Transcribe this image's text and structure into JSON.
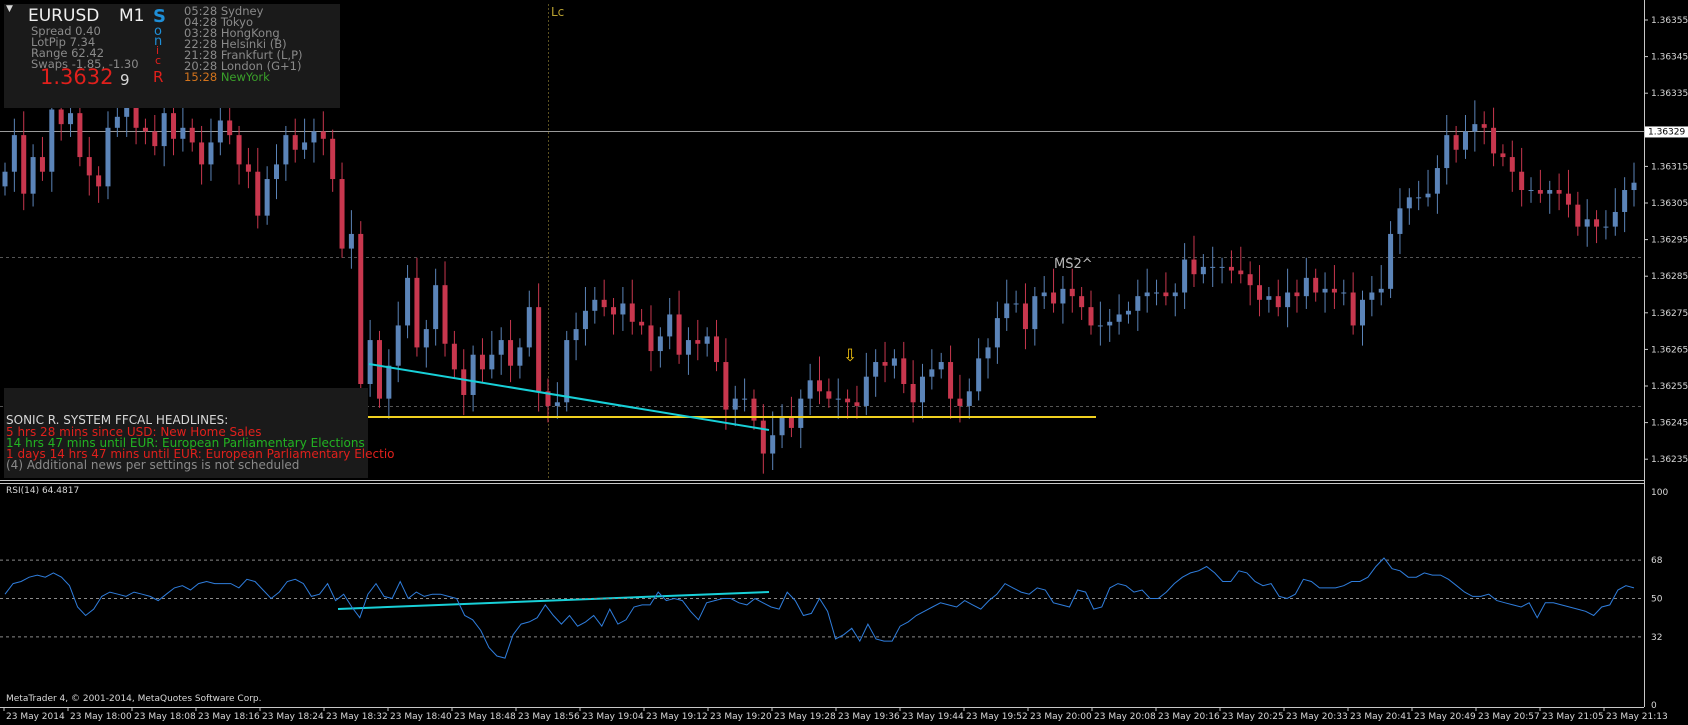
{
  "info_panel": {
    "symbol": "EURUSD",
    "timeframe": "M1",
    "spread": "Spread 0.40",
    "lotpip": "LotPip 7.34",
    "range": "Range 62.42",
    "swaps": "Swaps -1.85, -1.30",
    "price": "1.3632",
    "price_digit": "9",
    "sonic_letters": [
      "S",
      "o",
      "n",
      "i",
      "c",
      "R"
    ],
    "sessions": [
      {
        "time": "05:28",
        "name": "Sydney",
        "color": "#8a8a8a"
      },
      {
        "time": "04:28",
        "name": "Tokyo",
        "color": "#8a8a8a"
      },
      {
        "time": "03:28",
        "name": "HongKong",
        "color": "#8a8a8a"
      },
      {
        "time": "22:28",
        "name": "Helsinki  (B)",
        "color": "#8a8a8a"
      },
      {
        "time": "21:28",
        "name": "Frankfurt  (L,P)",
        "color": "#8a8a8a"
      },
      {
        "time": "20:28",
        "name": "London  (G+1)",
        "color": "#8a8a8a"
      },
      {
        "time": "15:28",
        "name": "NewYork",
        "color": "#3aa02a",
        "time_color": "#d2731c"
      }
    ]
  },
  "news_panel": {
    "title": "SONIC R. SYSTEM  FFCAL HEADLINES:",
    "lines": [
      {
        "text": "5 hrs 28 mins since USD: New Home Sales",
        "color": "#e0201c"
      },
      {
        "text": "14 hrs 47 mins until EUR: European Parliamentary Elections",
        "color": "#22b322"
      },
      {
        "text": "1 days 14 hrs 47 mins until EUR: European Parliamentary Electio",
        "color": "#e0201c"
      },
      {
        "text": "(4)  Additional news per settings is not scheduled",
        "color": "#8a8a8a"
      }
    ]
  },
  "labels": {
    "lc": "Lc",
    "ms2": "MS2^",
    "arrow": "⇩",
    "rsi_title": "RSI(14) 64.4817",
    "copyright": "MetaTrader 4, © 2001-2014, MetaQuotes Software Corp.",
    "current_price": "1.36329"
  },
  "price_axis": [
    "1.36355",
    "1.36345",
    "1.36335",
    "1.36325",
    "1.36315",
    "1.36305",
    "1.36295",
    "1.36285",
    "1.36275",
    "1.36265",
    "1.36255",
    "1.36245",
    "1.36235"
  ],
  "rsi_axis": [
    "100",
    "68",
    "50",
    "32",
    "0"
  ],
  "time_axis": [
    "23 May 2014",
    "23 May 18:00",
    "23 May 18:08",
    "23 May 18:16",
    "23 May 18:24",
    "23 May 18:32",
    "23 May 18:40",
    "23 May 18:48",
    "23 May 18:56",
    "23 May 19:04",
    "23 May 19:12",
    "23 May 19:20",
    "23 May 19:28",
    "23 May 19:36",
    "23 May 19:44",
    "23 May 19:52",
    "23 May 20:00",
    "23 May 20:08",
    "23 May 20:16",
    "23 May 20:25",
    "23 May 20:33",
    "23 May 20:41",
    "23 May 20:49",
    "23 May 20:57",
    "23 May 21:05",
    "23 May 21:13"
  ],
  "chart_data": {
    "type": "candlestick",
    "price_range": [
      1.3623,
      1.3636
    ],
    "rsi_range": [
      0,
      100
    ],
    "rsi_levels": [
      32,
      50,
      68
    ],
    "current_price": 1.36329,
    "support_level": 1.36251,
    "colors": {
      "bull": "#5b84b8",
      "bear": "#c8374e",
      "rsi": "#2f7ddc",
      "support": "#f0d020",
      "trendline": "#18d0d8",
      "grid": "#3a3a3a"
    },
    "closes": [
      1.36318,
      1.36328,
      1.36312,
      1.36322,
      1.36318,
      1.36335,
      1.36331,
      1.36334,
      1.36322,
      1.36317,
      1.36314,
      1.3633,
      1.36333,
      1.36337,
      1.3633,
      1.36329,
      1.36325,
      1.36334,
      1.36327,
      1.3633,
      1.36326,
      1.3632,
      1.36326,
      1.36332,
      1.36328,
      1.3632,
      1.36318,
      1.36306,
      1.36316,
      1.3632,
      1.36328,
      1.36324,
      1.36326,
      1.36329,
      1.36327,
      1.36316,
      1.36297,
      1.36301,
      1.3626,
      1.36272,
      1.36256,
      1.36265,
      1.36276,
      1.36289,
      1.3627,
      1.36275,
      1.36287,
      1.36271,
      1.36264,
      1.36257,
      1.36268,
      1.36264,
      1.36268,
      1.36272,
      1.36265,
      1.3627,
      1.36281,
      1.36258,
      1.36254,
      1.36255,
      1.36272,
      1.36275,
      1.3628,
      1.36283,
      1.36281,
      1.36279,
      1.36282,
      1.36277,
      1.36276,
      1.36269,
      1.36273,
      1.36279,
      1.36268,
      1.36272,
      1.36271,
      1.36273,
      1.36266,
      1.36253,
      1.36256,
      1.36256,
      1.3625,
      1.36241,
      1.36246,
      1.36251,
      1.36248,
      1.36256,
      1.36261,
      1.36258,
      1.36256,
      1.36256,
      1.36255,
      1.36254,
      1.36262,
      1.36266,
      1.36265,
      1.36267,
      1.3626,
      1.36255,
      1.36262,
      1.36264,
      1.36266,
      1.36256,
      1.36254,
      1.36258,
      1.36267,
      1.3627,
      1.36278,
      1.36282,
      1.36282,
      1.36275,
      1.36284,
      1.36285,
      1.36282,
      1.36286,
      1.36284,
      1.36281,
      1.36276,
      1.36276,
      1.36277,
      1.36279,
      1.3628,
      1.36284,
      1.36285,
      1.36285,
      1.36284,
      1.36285,
      1.36294,
      1.3629,
      1.36292,
      1.36292,
      1.36292,
      1.36291,
      1.3629,
      1.36287,
      1.36283,
      1.36284,
      1.36281,
      1.36285,
      1.36284,
      1.36289,
      1.36285,
      1.36286,
      1.36285,
      1.36285,
      1.36276,
      1.36283,
      1.36285,
      1.36286,
      1.36301,
      1.36308,
      1.36311,
      1.36311,
      1.36312,
      1.36319,
      1.36328,
      1.36324,
      1.36329,
      1.36331,
      1.3633,
      1.36323,
      1.36322,
      1.36318,
      1.36313,
      1.36313,
      1.36312,
      1.36313,
      1.36312,
      1.36309,
      1.36303,
      1.36305,
      1.36303,
      1.36303,
      1.36307,
      1.36313,
      1.36315
    ],
    "rsi": [
      52,
      57,
      58,
      60,
      61,
      60,
      62,
      60,
      56,
      46,
      42,
      45,
      51,
      53,
      52,
      51,
      53,
      52,
      51,
      49,
      52,
      55,
      56,
      54,
      57,
      58,
      57,
      57,
      57,
      55,
      59,
      58,
      54,
      50,
      53,
      58,
      59,
      57,
      51,
      52,
      57,
      49,
      52,
      46,
      41,
      52,
      57,
      51,
      50,
      58,
      50,
      53,
      51,
      52,
      52,
      51,
      50,
      42,
      40,
      35,
      27,
      23,
      22,
      33,
      38,
      39,
      41,
      47,
      42,
      38,
      42,
      37,
      39,
      42,
      37,
      45,
      38,
      40,
      46,
      47,
      47,
      53,
      49,
      50,
      49,
      44,
      40,
      48,
      49,
      50,
      50,
      48,
      47,
      50,
      48,
      46,
      45,
      53,
      49,
      42,
      43,
      50,
      44,
      31,
      33,
      36,
      30,
      38,
      31,
      30,
      30,
      37,
      39,
      42,
      44,
      46,
      48,
      47,
      46,
      49,
      47,
      45,
      49,
      52,
      57,
      55,
      53,
      52,
      55,
      54,
      48,
      47,
      46,
      54,
      53,
      45,
      46,
      55,
      57,
      56,
      53,
      54,
      50,
      50,
      53,
      57,
      60,
      62,
      63,
      65,
      62,
      58,
      58,
      63,
      62,
      58,
      56,
      57,
      51,
      50,
      52,
      59,
      58,
      55,
      55,
      55,
      56,
      58,
      58,
      60,
      65,
      69,
      64,
      63,
      60,
      60,
      62,
      61,
      61,
      59,
      56,
      53,
      51,
      51,
      52,
      49,
      48,
      47,
      46,
      48,
      41,
      48,
      48,
      47,
      46,
      45,
      44,
      42,
      46,
      47,
      54,
      56,
      55
    ],
    "support_x": [
      358,
      1096
    ],
    "price_trendline": [
      [
        369,
        364
      ],
      [
        769,
        430
      ]
    ],
    "rsi_trendline": [
      [
        338,
        609
      ],
      [
        769,
        592
      ]
    ]
  }
}
